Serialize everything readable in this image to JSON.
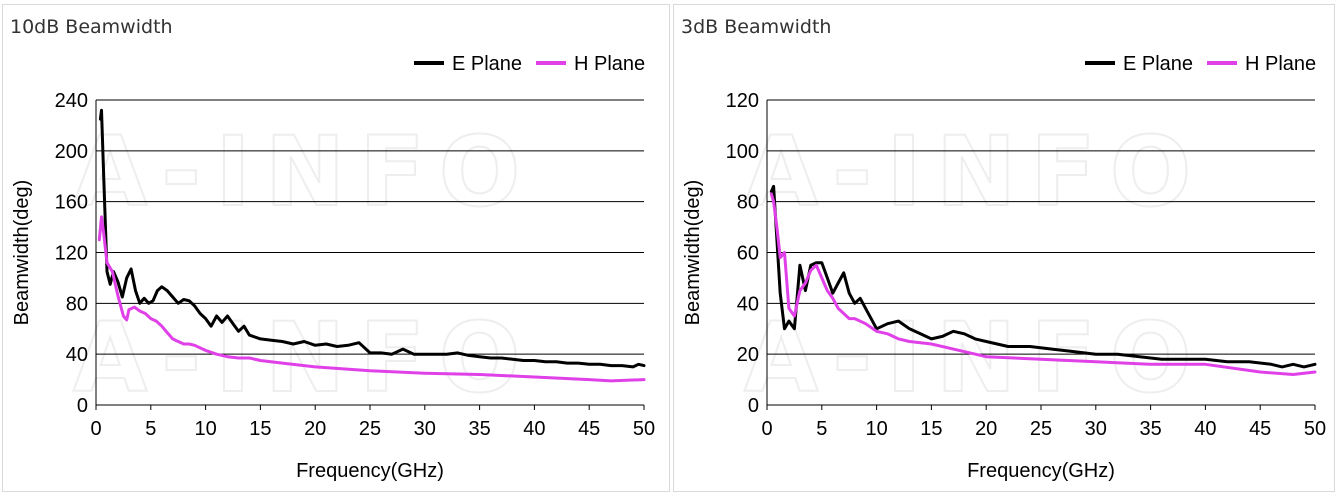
{
  "chart_data": [
    {
      "type": "line",
      "title": "10dB Beamwidth",
      "xlabel": "Frequency(GHz)",
      "ylabel": "Beamwidth(deg)",
      "xlim": [
        0,
        50
      ],
      "ylim": [
        0,
        240
      ],
      "xticks": [
        0,
        5,
        10,
        15,
        20,
        25,
        30,
        35,
        40,
        45,
        50
      ],
      "yticks": [
        0,
        40,
        80,
        120,
        160,
        200,
        240
      ],
      "grid": "horizontal",
      "legend": "top-right",
      "watermark": "A-INFO",
      "series": [
        {
          "name": "E Plane",
          "color": "#000000",
          "x": [
            0.4,
            0.5,
            0.7,
            1.0,
            1.3,
            1.6,
            2.0,
            2.4,
            2.8,
            3.2,
            3.6,
            4.0,
            4.4,
            4.8,
            5.2,
            5.6,
            6.0,
            6.5,
            7.0,
            7.5,
            8.0,
            8.5,
            9.0,
            9.5,
            10.0,
            10.5,
            11.0,
            11.5,
            12.0,
            12.5,
            13.0,
            13.5,
            14.0,
            15.0,
            16.0,
            17.0,
            18.0,
            19.0,
            20.0,
            21.0,
            22.0,
            23.0,
            24.0,
            25.0,
            26.0,
            27.0,
            28.0,
            29.0,
            30.0,
            31.0,
            32.0,
            33.0,
            34.0,
            35.0,
            36.0,
            37.0,
            38.0,
            39.0,
            40.0,
            41.0,
            42.0,
            43.0,
            44.0,
            45.0,
            46.0,
            47.0,
            48.0,
            49.0,
            49.5,
            50.0
          ],
          "values": [
            225,
            232,
            180,
            105,
            95,
            105,
            97,
            85,
            100,
            107,
            90,
            80,
            84,
            80,
            82,
            90,
            93,
            90,
            85,
            80,
            83,
            82,
            78,
            72,
            68,
            62,
            70,
            65,
            70,
            64,
            58,
            62,
            55,
            52,
            51,
            50,
            48,
            50,
            47,
            48,
            46,
            47,
            49,
            41,
            41,
            40,
            44,
            40,
            40,
            40,
            40,
            41,
            39,
            38,
            37,
            37,
            36,
            35,
            35,
            34,
            34,
            33,
            33,
            32,
            32,
            31,
            31,
            30,
            32,
            31
          ]
        },
        {
          "name": "H Plane",
          "color": "#e040e8",
          "x": [
            0.3,
            0.5,
            0.7,
            1.0,
            1.5,
            2.0,
            2.5,
            2.8,
            3.0,
            3.5,
            4.0,
            4.5,
            5.0,
            5.5,
            6.0,
            6.5,
            7.0,
            7.5,
            8.0,
            8.5,
            9.0,
            10.0,
            11.0,
            12.0,
            13.0,
            14.0,
            15.0,
            17.0,
            20.0,
            25.0,
            30.0,
            35.0,
            40.0,
            45.0,
            47.0,
            50.0
          ],
          "values": [
            130,
            148,
            135,
            112,
            105,
            86,
            70,
            67,
            75,
            77,
            74,
            72,
            68,
            66,
            62,
            57,
            52,
            50,
            48,
            48,
            47,
            43,
            40,
            38,
            37,
            37,
            35,
            33,
            30,
            27,
            25,
            24,
            22,
            20,
            19,
            20
          ]
        }
      ]
    },
    {
      "type": "line",
      "title": "3dB Beamwidth",
      "xlabel": "Frequency(GHz)",
      "ylabel": "Beamwidth(deg)",
      "xlim": [
        0,
        50
      ],
      "ylim": [
        0,
        120
      ],
      "xticks": [
        0,
        5,
        10,
        15,
        20,
        25,
        30,
        35,
        40,
        45,
        50
      ],
      "yticks": [
        0,
        20,
        40,
        60,
        80,
        100,
        120
      ],
      "grid": "horizontal",
      "legend": "top-right",
      "watermark": "A-INFO",
      "series": [
        {
          "name": "E Plane",
          "color": "#000000",
          "x": [
            0.4,
            0.6,
            0.9,
            1.2,
            1.6,
            2.0,
            2.5,
            3.0,
            3.5,
            4.0,
            4.5,
            5.0,
            5.5,
            6.0,
            6.5,
            7.0,
            7.5,
            8.0,
            8.5,
            9.0,
            9.5,
            10.0,
            11.0,
            12.0,
            13.0,
            14.0,
            15.0,
            16.0,
            17.0,
            18.0,
            19.0,
            20.0,
            22.0,
            24.0,
            26.0,
            28.0,
            30.0,
            32.0,
            34.0,
            36.0,
            38.0,
            40.0,
            42.0,
            44.0,
            46.0,
            47.0,
            48.0,
            49.0,
            50.0
          ],
          "values": [
            84,
            86,
            65,
            44,
            30,
            33,
            30,
            55,
            45,
            55,
            56,
            56,
            50,
            44,
            48,
            52,
            44,
            40,
            42,
            38,
            34,
            30,
            32,
            33,
            30,
            28,
            26,
            27,
            29,
            28,
            26,
            25,
            23,
            23,
            22,
            21,
            20,
            20,
            19,
            18,
            18,
            18,
            17,
            17,
            16,
            15,
            16,
            15,
            16
          ]
        },
        {
          "name": "H Plane",
          "color": "#e040e8",
          "x": [
            0.4,
            0.6,
            0.9,
            1.2,
            1.6,
            2.0,
            2.5,
            3.0,
            3.5,
            4.0,
            4.5,
            5.0,
            5.5,
            6.0,
            6.5,
            7.0,
            7.5,
            8.0,
            9.0,
            10.0,
            11.0,
            12.0,
            13.0,
            15.0,
            17.0,
            20.0,
            25.0,
            30.0,
            35.0,
            40.0,
            45.0,
            48.0,
            50.0
          ],
          "values": [
            83,
            80,
            70,
            58,
            60,
            38,
            35,
            45,
            48,
            53,
            55,
            50,
            45,
            42,
            38,
            36,
            34,
            34,
            32,
            29,
            28,
            26,
            25,
            24,
            22,
            19,
            18,
            17,
            16,
            16,
            13,
            12,
            13
          ]
        }
      ]
    }
  ]
}
